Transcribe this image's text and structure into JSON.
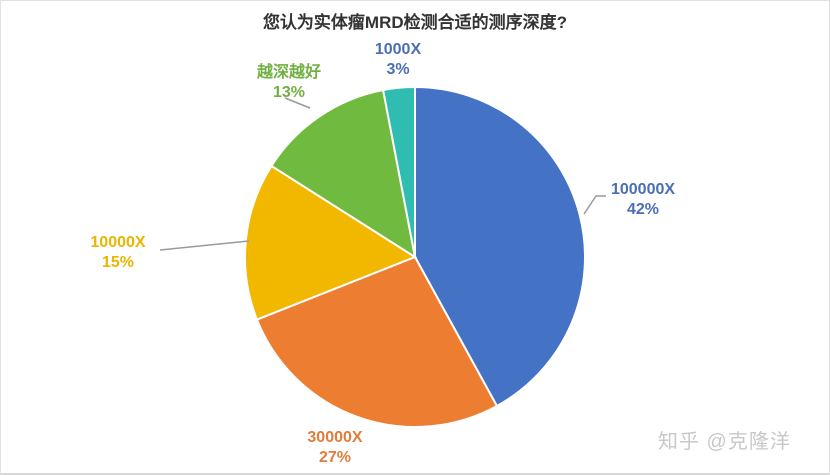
{
  "chart_data": {
    "type": "pie",
    "title": "您认为实体瘤MRD检测合适的测序深度?",
    "categories": [
      "100000X",
      "30000X",
      "10000X",
      "越深越好",
      "1000X"
    ],
    "values": [
      42,
      27,
      15,
      13,
      3
    ],
    "unit": "%",
    "colors": [
      "#4472c4",
      "#ed7d31",
      "#f2b800",
      "#70bb3f",
      "#2ebdb0"
    ],
    "start_angle": "12 o'clock",
    "direction": "clockwise",
    "legend": "none; data labels outside with leader lines"
  },
  "labels": {
    "s0": {
      "name": "100000X",
      "pct": "42%"
    },
    "s1": {
      "name": "30000X",
      "pct": "27%"
    },
    "s2": {
      "name": "10000X",
      "pct": "15%"
    },
    "s3": {
      "name": "越深越好",
      "pct": "13%"
    },
    "s4": {
      "name": "1000X",
      "pct": "3%"
    }
  },
  "watermark": "知乎 @克隆洋"
}
